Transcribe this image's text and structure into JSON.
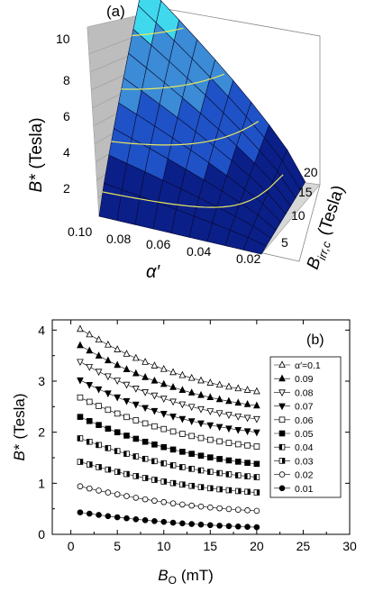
{
  "panel_a": {
    "label": "(a)",
    "z_axis": {
      "label_main": "B*",
      "label_unit": "(Tesla)",
      "ticks": [
        "2",
        "4",
        "6",
        "8",
        "10"
      ]
    },
    "x_axis": {
      "label": "α′",
      "ticks": [
        "0.10",
        "0.08",
        "0.06",
        "0.04",
        "0.02"
      ]
    },
    "y_axis": {
      "label_main": "B",
      "label_sub": "irr,c",
      "label_unit": "(Tesla)",
      "ticks": [
        "5",
        "10",
        "15",
        "20"
      ]
    }
  },
  "chart_data": [
    {
      "type": "surface",
      "panel": "(a)",
      "x_label": "α′",
      "y_label": "B_irr,c (Tesla)",
      "z_label": "B* (Tesla)",
      "x_range": [
        0.01,
        0.1
      ],
      "y_range": [
        2,
        20
      ],
      "z_range": [
        1,
        10
      ],
      "surface_colors": [
        "#0a1f88",
        "#1f52c6",
        "#3b8bd6",
        "#40d8ec"
      ],
      "contour_color": "#e8e860"
    },
    {
      "type": "scatter",
      "panel": "(b)",
      "xlabel_main": "B",
      "xlabel_sub": "O",
      "xlabel_unit": "(mT)",
      "ylabel_main": "B*",
      "ylabel_unit": "(Tesla)",
      "xlim": [
        -2,
        30
      ],
      "ylim": [
        0,
        4.2
      ],
      "xticks": [
        0,
        5,
        10,
        15,
        20,
        25,
        30
      ],
      "yticks": [
        0,
        1,
        2,
        3,
        4
      ],
      "legend_position": "top-right",
      "x": [
        1,
        2,
        3,
        4,
        5,
        6,
        7,
        8,
        9,
        10,
        11,
        12,
        13,
        14,
        15,
        16,
        17,
        18,
        19,
        20
      ],
      "series": [
        {
          "name": "α′=0.1",
          "marker": "triangle-up-open",
          "y0": 4.02,
          "y20": 2.8,
          "decay": 0.16
        },
        {
          "name": "0.09",
          "marker": "triangle-up-filled",
          "y0": 3.7,
          "y20": 2.52,
          "decay": 0.16
        },
        {
          "name": "0.08",
          "marker": "triangle-down-open",
          "y0": 3.38,
          "y20": 2.26,
          "decay": 0.16
        },
        {
          "name": "0.07",
          "marker": "triangle-down-filled",
          "y0": 3.02,
          "y20": 2.0,
          "decay": 0.16
        },
        {
          "name": "0.06",
          "marker": "square-open",
          "y0": 2.68,
          "y20": 1.72,
          "decay": 0.16
        },
        {
          "name": "0.05",
          "marker": "square-filled",
          "y0": 2.3,
          "y20": 1.38,
          "decay": 0.16
        },
        {
          "name": "0.04",
          "marker": "square-half-left",
          "y0": 1.88,
          "y20": 1.12,
          "decay": 0.16
        },
        {
          "name": "0.03",
          "marker": "square-half-right",
          "y0": 1.42,
          "y20": 0.82,
          "decay": 0.16
        },
        {
          "name": "0.02",
          "marker": "circle-open",
          "y0": 0.94,
          "y20": 0.46,
          "decay": 0.18
        },
        {
          "name": "0.01",
          "marker": "circle-filled",
          "y0": 0.43,
          "y20": 0.14,
          "decay": 0.2
        }
      ]
    }
  ],
  "panel_b": {
    "label": "(b)"
  }
}
